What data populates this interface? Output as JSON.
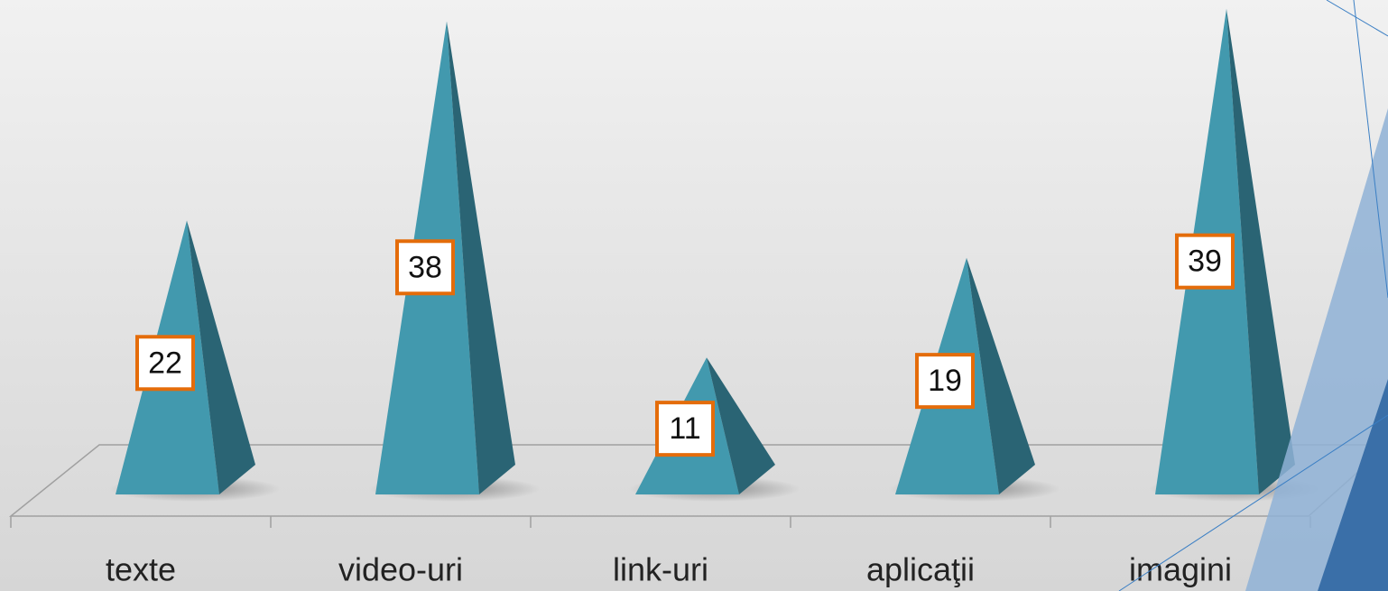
{
  "chart_data": {
    "type": "pyramid",
    "categories": [
      "texte",
      "video-uri",
      "link-uri",
      "aplicaţii",
      "imagini"
    ],
    "values": [
      22,
      38,
      11,
      19,
      39
    ],
    "color": "#4299ae"
  }
}
